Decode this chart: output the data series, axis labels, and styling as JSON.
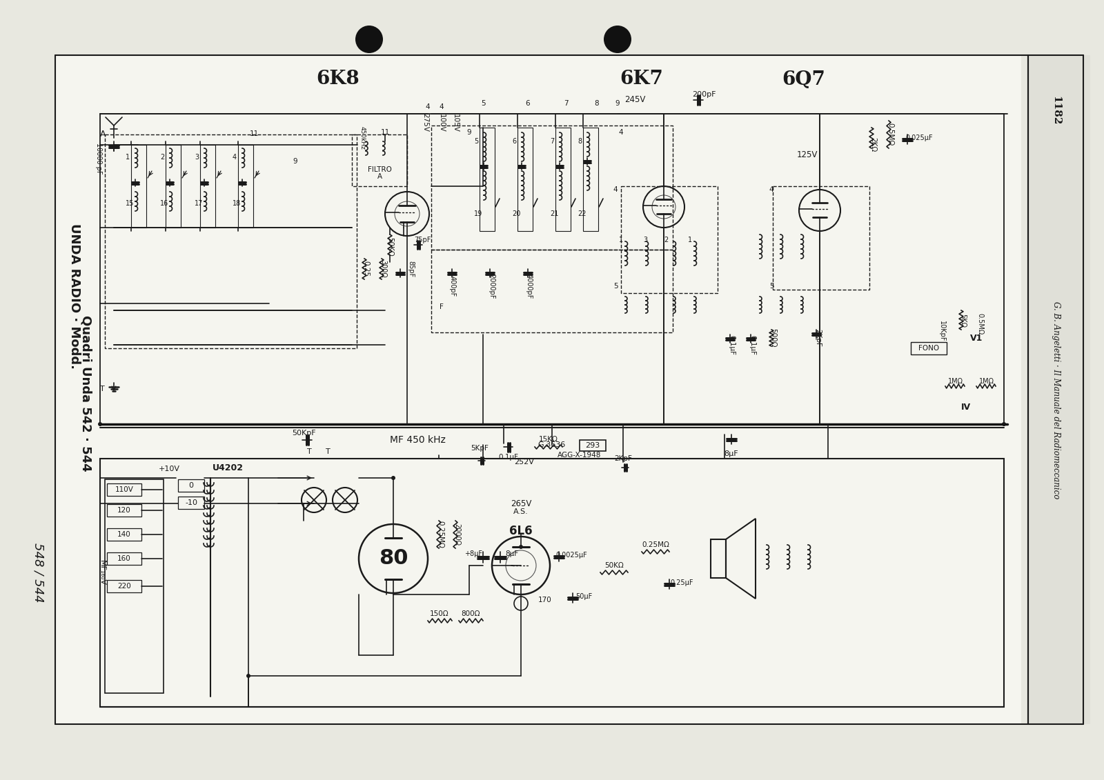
{
  "bg_color": "#e8e8e0",
  "line_color": "#1a1a1a",
  "page_number": "1182",
  "author_text": "G. B. Angeletti · Il Manuale del Radiomeccanico",
  "model_line1": "UNDA RADIO · Modd.",
  "model_line2": "Quadri Unda 542 · 544",
  "handwriting": "548 / 544",
  "tube_labels": [
    "6K8",
    "6K7",
    "6Q7"
  ],
  "dot1": [
    0.335,
    0.945
  ],
  "dot2": [
    0.56,
    0.945
  ],
  "schematic_bg": "#f0f0e8",
  "right_strip_bg": "#e8e8e0"
}
